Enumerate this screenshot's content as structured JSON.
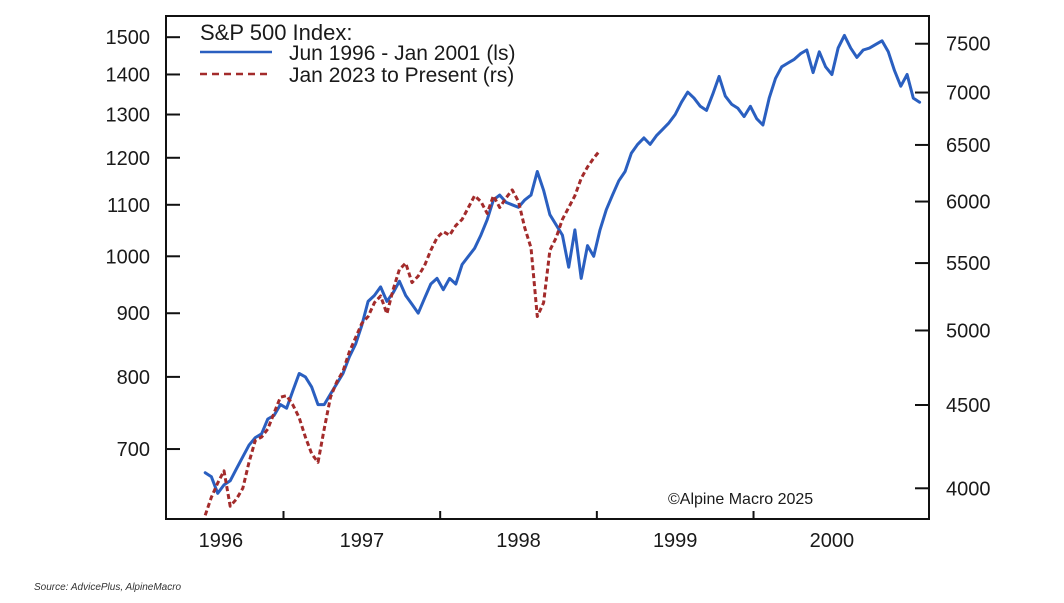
{
  "chart_data": {
    "type": "line",
    "title": "S&P 500 Index:",
    "credit": "©Alpine Macro 2025",
    "source": "Source: AdvicePlus, AlpineMacro",
    "x_ticks": [
      "1996",
      "1997",
      "1998",
      "1999",
      "2000"
    ],
    "left_axis": {
      "scale": "log",
      "ylim": [
        615,
        1560
      ],
      "ticks": [
        700,
        800,
        900,
        1000,
        1100,
        1200,
        1300,
        1400,
        1500
      ]
    },
    "right_axis": {
      "scale": "log",
      "ylim": [
        3830,
        7800
      ],
      "ticks": [
        4000,
        4500,
        5000,
        5500,
        6000,
        6500,
        7000,
        7500
      ]
    },
    "series": [
      {
        "name": "Jun 1996 - Jan 2001 (ls)",
        "axis": "left",
        "color": "#2a5fc0",
        "style": "solid",
        "x": [
          1996.0,
          1996.04,
          1996.08,
          1996.12,
          1996.16,
          1996.2,
          1996.24,
          1996.28,
          1996.32,
          1996.36,
          1996.4,
          1996.44,
          1996.48,
          1996.52,
          1996.56,
          1996.6,
          1996.64,
          1996.68,
          1996.72,
          1996.76,
          1996.8,
          1996.84,
          1996.88,
          1996.92,
          1996.96,
          1997.0,
          1997.04,
          1997.08,
          1997.12,
          1997.16,
          1997.2,
          1997.24,
          1997.28,
          1997.32,
          1997.36,
          1997.4,
          1997.44,
          1997.48,
          1997.52,
          1997.56,
          1997.6,
          1997.64,
          1997.68,
          1997.72,
          1997.76,
          1997.8,
          1997.84,
          1997.88,
          1997.92,
          1997.96,
          1998.0,
          1998.04,
          1998.08,
          1998.12,
          1998.16,
          1998.2,
          1998.24,
          1998.28,
          1998.32,
          1998.36,
          1998.4,
          1998.44,
          1998.48,
          1998.52,
          1998.56,
          1998.6,
          1998.64,
          1998.68,
          1998.72,
          1998.76,
          1998.8,
          1998.84,
          1998.88,
          1998.92,
          1998.96,
          1999.0,
          1999.04,
          1999.08,
          1999.12,
          1999.16,
          1999.2,
          1999.24,
          1999.28,
          1999.32,
          1999.36,
          1999.4,
          1999.44,
          1999.48,
          1999.52,
          1999.56,
          1999.6,
          1999.64,
          1999.68,
          1999.72,
          1999.76,
          1999.8,
          1999.84,
          1999.88,
          1999.92,
          1999.96,
          2000.0,
          2000.04,
          2000.08,
          2000.12,
          2000.16,
          2000.2,
          2000.24,
          2000.28,
          2000.32,
          2000.36,
          2000.4,
          2000.44,
          2000.48,
          2000.52,
          2000.56
        ],
        "values": [
          670,
          665,
          645,
          655,
          660,
          675,
          690,
          705,
          715,
          720,
          740,
          745,
          760,
          755,
          780,
          805,
          800,
          785,
          760,
          760,
          775,
          790,
          805,
          830,
          850,
          880,
          920,
          930,
          945,
          920,
          935,
          955,
          930,
          915,
          900,
          925,
          950,
          960,
          940,
          960,
          950,
          985,
          1000,
          1015,
          1040,
          1070,
          1110,
          1120,
          1105,
          1100,
          1095,
          1110,
          1120,
          1170,
          1130,
          1080,
          1060,
          1040,
          980,
          1050,
          960,
          1020,
          1000,
          1050,
          1090,
          1120,
          1150,
          1170,
          1210,
          1230,
          1245,
          1230,
          1250,
          1265,
          1280,
          1300,
          1330,
          1355,
          1340,
          1320,
          1310,
          1350,
          1395,
          1345,
          1325,
          1315,
          1295,
          1320,
          1290,
          1275,
          1340,
          1390,
          1420,
          1430,
          1440,
          1455,
          1465,
          1405,
          1460,
          1420,
          1400,
          1470,
          1505,
          1470,
          1445,
          1465,
          1470,
          1480,
          1490,
          1460,
          1410,
          1370,
          1400,
          1340,
          1330
        ]
      },
      {
        "name": "Jan 2023 to Present (rs)",
        "axis": "right",
        "color": "#a32b2b",
        "style": "dashed",
        "x": [
          1996.0,
          1996.04,
          1996.08,
          1996.12,
          1996.16,
          1996.2,
          1996.24,
          1996.28,
          1996.32,
          1996.36,
          1996.4,
          1996.44,
          1996.48,
          1996.52,
          1996.56,
          1996.6,
          1996.64,
          1996.68,
          1996.72,
          1996.76,
          1996.8,
          1996.84,
          1996.88,
          1996.92,
          1996.96,
          1997.0,
          1997.04,
          1997.08,
          1997.12,
          1997.16,
          1997.2,
          1997.24,
          1997.28,
          1997.32,
          1997.36,
          1997.4,
          1997.44,
          1997.48,
          1997.52,
          1997.56,
          1997.6,
          1997.64,
          1997.68,
          1997.72,
          1997.76,
          1997.8,
          1997.84,
          1997.88,
          1997.92,
          1997.96,
          1998.0,
          1998.04,
          1998.08,
          1998.12,
          1998.16,
          1998.2,
          1998.24,
          1998.28,
          1998.32,
          1998.36,
          1998.4,
          1998.44,
          1998.48,
          1998.52
        ],
        "values": [
          3850,
          3950,
          4030,
          4100,
          3900,
          3940,
          4000,
          4150,
          4280,
          4300,
          4350,
          4450,
          4550,
          4560,
          4500,
          4420,
          4300,
          4200,
          4150,
          4350,
          4550,
          4650,
          4720,
          4850,
          4950,
          5050,
          5100,
          5200,
          5250,
          5120,
          5300,
          5450,
          5500,
          5350,
          5400,
          5480,
          5600,
          5700,
          5750,
          5720,
          5800,
          5850,
          5950,
          6050,
          6000,
          5900,
          6050,
          5950,
          6030,
          6100,
          6000,
          5780,
          5620,
          5100,
          5200,
          5600,
          5700,
          5850,
          5950,
          6050,
          6200,
          6300,
          6380,
          6450
        ]
      }
    ]
  }
}
